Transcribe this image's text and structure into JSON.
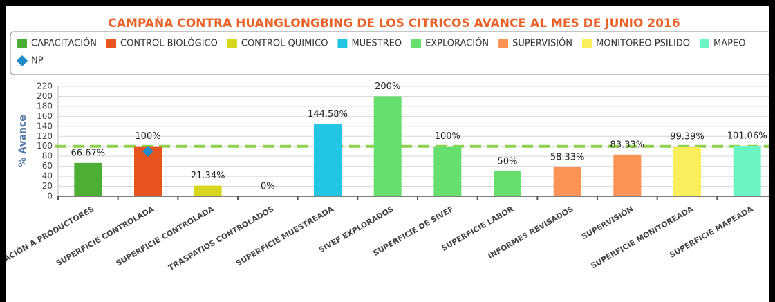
{
  "chart_data": {
    "type": "bar",
    "title": "CAMPAÑA CONTRA HUANGLONGBING DE LOS CITRICOS AVANCE AL MES DE JUNIO 2016",
    "y_label": "% Avance",
    "categories": [
      "CAPACITACIÓN A PRODUCTORES",
      "SUPERFICIE CONTROLADA",
      "SUPERFICIE CONTROLADA",
      "TRASPATIOS CONTROLADOS",
      "SUPERFICIE MUESTREADA",
      "SIVEF EXPLORADOS",
      "SUPERFICIE DE SIVEF",
      "SUPERFICIE LABOR",
      "INFORMES REVISADOS",
      "SUPERVISIÓN",
      "SUPERFICIE MONITOREADA",
      "SUPERFICIE MAPEADA"
    ],
    "series": [
      {
        "name": "CAPACITACIÓN",
        "color": "#4cae34",
        "values": [
          66.67,
          null,
          null,
          null,
          null,
          null,
          null,
          null,
          null,
          null,
          null,
          null
        ],
        "value_labels": [
          "66.67%",
          null,
          null,
          null,
          null,
          null,
          null,
          null,
          null,
          null,
          null,
          null
        ]
      },
      {
        "name": "CONTROL BIOLÓGICO",
        "color": "#e8541e",
        "values": [
          null,
          100,
          null,
          null,
          null,
          null,
          null,
          null,
          null,
          null,
          null,
          null
        ],
        "value_labels": [
          null,
          "100%",
          null,
          null,
          null,
          null,
          null,
          null,
          null,
          null,
          null,
          null
        ]
      },
      {
        "name": "CONTROL QUIMICO",
        "color": "#d6d61c",
        "values": [
          null,
          null,
          21.34,
          0,
          null,
          null,
          null,
          null,
          null,
          null,
          null,
          null
        ],
        "value_labels": [
          null,
          null,
          "21.34%",
          "0%",
          null,
          null,
          null,
          null,
          null,
          null,
          null,
          null
        ]
      },
      {
        "name": "MUESTREO",
        "color": "#22c6e2",
        "values": [
          null,
          null,
          null,
          null,
          144.58,
          null,
          null,
          null,
          null,
          null,
          null,
          null
        ],
        "value_labels": [
          null,
          null,
          null,
          null,
          "144.58%",
          null,
          null,
          null,
          null,
          null,
          null,
          null
        ]
      },
      {
        "name": "EXPLORACIÓN",
        "color": "#66df6e",
        "values": [
          null,
          null,
          null,
          null,
          null,
          200,
          100,
          50,
          null,
          null,
          null,
          null
        ],
        "value_labels": [
          null,
          null,
          null,
          null,
          null,
          "200%",
          "100%",
          "50%",
          null,
          null,
          null,
          null
        ]
      },
      {
        "name": "SUPERVISIÓN",
        "color": "#fb9256",
        "values": [
          null,
          null,
          null,
          null,
          null,
          null,
          null,
          null,
          58.33,
          83.33,
          null,
          null
        ],
        "value_labels": [
          null,
          null,
          null,
          null,
          null,
          null,
          null,
          null,
          "58.33%",
          "83.33%",
          null,
          null
        ]
      },
      {
        "name": "MONITOREO PSILIDO",
        "color": "#fbee5c",
        "values": [
          null,
          null,
          null,
          null,
          null,
          null,
          null,
          null,
          null,
          null,
          99.39,
          null
        ],
        "value_labels": [
          null,
          null,
          null,
          null,
          null,
          null,
          null,
          null,
          null,
          null,
          "99.39%",
          null
        ]
      },
      {
        "name": "MAPEO",
        "color": "#6cf4c2",
        "values": [
          null,
          null,
          null,
          null,
          null,
          null,
          null,
          null,
          null,
          null,
          null,
          101.06
        ],
        "value_labels": [
          null,
          null,
          null,
          null,
          null,
          null,
          null,
          null,
          null,
          null,
          null,
          "101.06%"
        ]
      },
      {
        "name": "NP",
        "color": "#1f8bc9",
        "marker": "diamond",
        "values": [
          null,
          90,
          null,
          null,
          null,
          null,
          null,
          null,
          null,
          null,
          null,
          null
        ]
      }
    ],
    "reference_line": {
      "value": 100,
      "color": "#8fd14f"
    },
    "ylim": [
      0,
      220
    ],
    "yticks": [
      0,
      20,
      40,
      60,
      80,
      100,
      120,
      140,
      160,
      180,
      200,
      220
    ],
    "grid": true
  }
}
